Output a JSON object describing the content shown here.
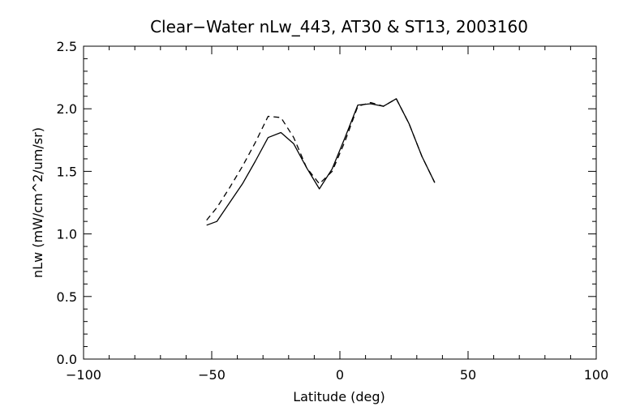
{
  "chart_data": {
    "type": "line",
    "title": "Clear−Water nLw_443, AT30 & ST13, 2003160",
    "xlabel": "Latitude (deg)",
    "ylabel": "nLw (mW/cm^2/um/sr)",
    "xlim": [
      -100,
      100
    ],
    "ylim": [
      0.0,
      2.5
    ],
    "xticks": [
      -100,
      -50,
      0,
      50,
      100
    ],
    "xtick_labels": [
      "−100",
      "−50",
      "0",
      "50",
      "100"
    ],
    "yticks": [
      0.0,
      0.5,
      1.0,
      1.5,
      2.0,
      2.5
    ],
    "ytick_labels": [
      "0.0",
      "0.5",
      "1.0",
      "1.5",
      "2.0",
      "2.5"
    ],
    "grid": false,
    "series": [
      {
        "style": "solid",
        "color": "#000000",
        "x": [
          -52,
          -48,
          -43,
          -38,
          -33,
          -28,
          -23,
          -18,
          -13,
          -8,
          -3,
          2,
          7,
          12,
          17,
          22,
          27,
          32,
          37
        ],
        "y": [
          1.07,
          1.1,
          1.25,
          1.4,
          1.58,
          1.77,
          1.81,
          1.72,
          1.53,
          1.36,
          1.52,
          1.77,
          2.03,
          2.04,
          2.02,
          2.08,
          1.88,
          1.62,
          1.41
        ]
      },
      {
        "style": "dashed",
        "color": "#000000",
        "x": [
          -52,
          -48,
          -43,
          -38,
          -33,
          -28,
          -23,
          -18,
          -13,
          -8,
          -3,
          2,
          7,
          12,
          17,
          22,
          27,
          32,
          37
        ],
        "y": [
          1.11,
          1.21,
          1.37,
          1.54,
          1.73,
          1.94,
          1.93,
          1.77,
          1.53,
          1.4,
          1.5,
          1.74,
          2.02,
          2.05,
          2.02,
          2.08,
          1.88,
          1.62,
          1.41
        ]
      }
    ]
  }
}
